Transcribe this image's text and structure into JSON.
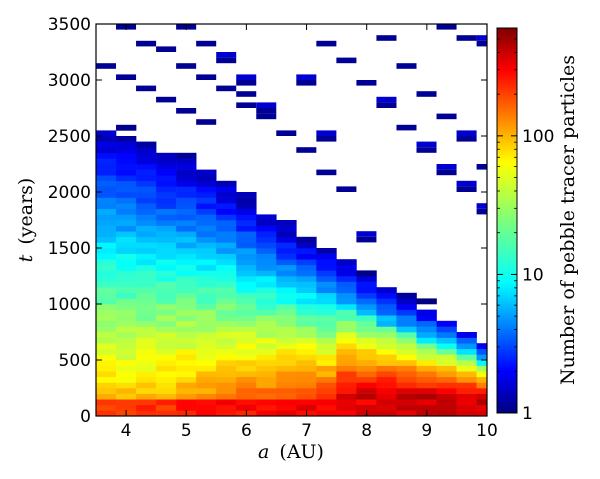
{
  "chart_data": {
    "type": "heatmap",
    "title": "",
    "xlabel_var": "a",
    "xlabel_unit": "(AU)",
    "ylabel_var": "t",
    "ylabel_unit": "(years)",
    "xlim": [
      3.5,
      10
    ],
    "ylim": [
      0,
      3500
    ],
    "xticks": [
      4,
      5,
      6,
      7,
      8,
      9,
      10
    ],
    "yticks": [
      0,
      500,
      1000,
      1500,
      2000,
      2500,
      3000,
      3500
    ],
    "x_bin_width": 0.333,
    "y_bin_height": 50,
    "colorbar": {
      "label": "Number of pebble tracer particles",
      "scale": "log",
      "range": [
        1,
        600
      ],
      "ticks": [
        {
          "value": 1,
          "label": "1"
        },
        {
          "value": 10,
          "label": "10"
        },
        {
          "value": 100,
          "label": "100"
        }
      ],
      "colormap": "jet"
    },
    "description_of_cells": "Dense region lies below a front falling from about t=2600 yr at a=3.5 AU to about t=650 yr at a=10 AU; densest (several hundred particles) near a=8.5-9.5 AU, t=200-700 yr; sparse single-particle streaks extend diagonally above the front.",
    "front": [
      [
        3.5,
        2600
      ],
      [
        4.5,
        2400
      ],
      [
        5.5,
        2150
      ],
      [
        6.5,
        1750
      ],
      [
        7.5,
        1420
      ],
      [
        8.5,
        1080
      ],
      [
        9.5,
        830
      ],
      [
        10.0,
        650
      ]
    ],
    "streaks": [
      {
        "x0": 3.5,
        "t0": 3150,
        "x1": 5.3,
        "t1": 2600
      },
      {
        "x0": 3.9,
        "t0": 3480,
        "x1": 6.2,
        "t1": 2700
      },
      {
        "x0": 4.9,
        "t0": 3480,
        "x1": 7.4,
        "t1": 2200
      },
      {
        "x0": 6.5,
        "t0": 3480,
        "x1": 7.9,
        "t1": 1550
      },
      {
        "x0": 7.3,
        "t0": 3350,
        "x1": 10.0,
        "t1": 1800
      },
      {
        "x0": 8.2,
        "t0": 3350,
        "x1": 10.0,
        "t1": 2250
      },
      {
        "x0": 9.3,
        "t0": 3480,
        "x1": 10.0,
        "t1": 3300
      }
    ]
  }
}
